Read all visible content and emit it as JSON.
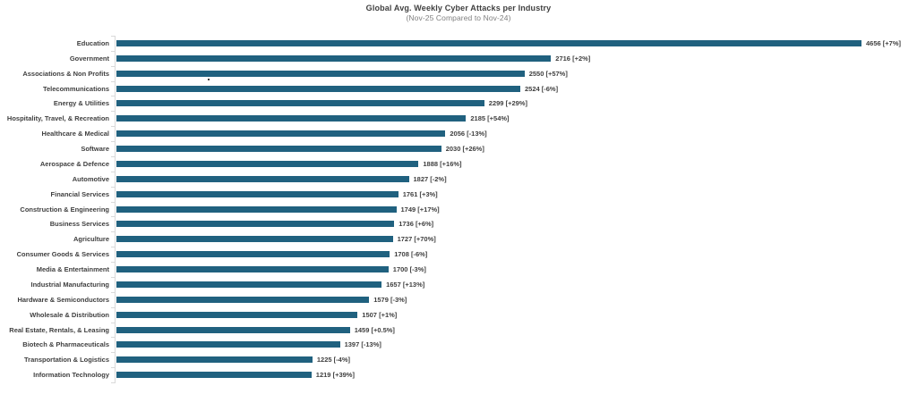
{
  "page": {
    "background": "#ffffff"
  },
  "header": {
    "title": "Global Avg. Weekly Cyber Attacks per Industry",
    "subtitle": "(Nov-25 Compared to Nov-24)"
  },
  "chart_data": {
    "type": "bar",
    "orientation": "horizontal",
    "title": "Global Avg. Weekly Cyber Attacks per Industry",
    "subtitle": "(Nov-25 Compared to Nov-24)",
    "categories": [
      "Education",
      "Government",
      "Associations & Non Profits",
      "Telecommunications",
      "Energy & Utilities",
      "Hospitality, Travel, & Recreation",
      "Healthcare & Medical",
      "Software",
      "Aerospace & Defence",
      "Automotive",
      "Financial Services",
      "Construction & Engineering",
      "Business Services",
      "Agriculture",
      "Consumer Goods & Services",
      "Media & Entertainment",
      "Industrial Manufacturing",
      "Hardware & Semiconductors",
      "Wholesale & Distribution",
      "Real Estate, Rentals, & Leasing",
      "Biotech & Pharmaceuticals",
      "Transportation & Logistics",
      "Information Technology"
    ],
    "values": [
      4656,
      2716,
      2550,
      2524,
      2299,
      2185,
      2056,
      2030,
      1888,
      1827,
      1761,
      1749,
      1736,
      1727,
      1708,
      1700,
      1657,
      1579,
      1507,
      1459,
      1397,
      1225,
      1219
    ],
    "changes": [
      "+7%",
      "+2%",
      "+57%",
      "-6%",
      "+29%",
      "+54%",
      "-13%",
      "+26%",
      "+16%",
      "-2%",
      "+3%",
      "+17%",
      "+6%",
      "+70%",
      "-6%",
      "-3%",
      "+13%",
      "-3%",
      "+1%",
      "+0.5%",
      "-13%",
      "-4%",
      "+39%"
    ],
    "data_label_format": "{value} [{change}]",
    "xlim": [
      0,
      4656
    ],
    "grid": false,
    "legend": false,
    "bar_color": "#20617f",
    "axis_color": "#d9d9d9",
    "label_color": "#3f3f3f",
    "subtitle_color": "#808080"
  }
}
